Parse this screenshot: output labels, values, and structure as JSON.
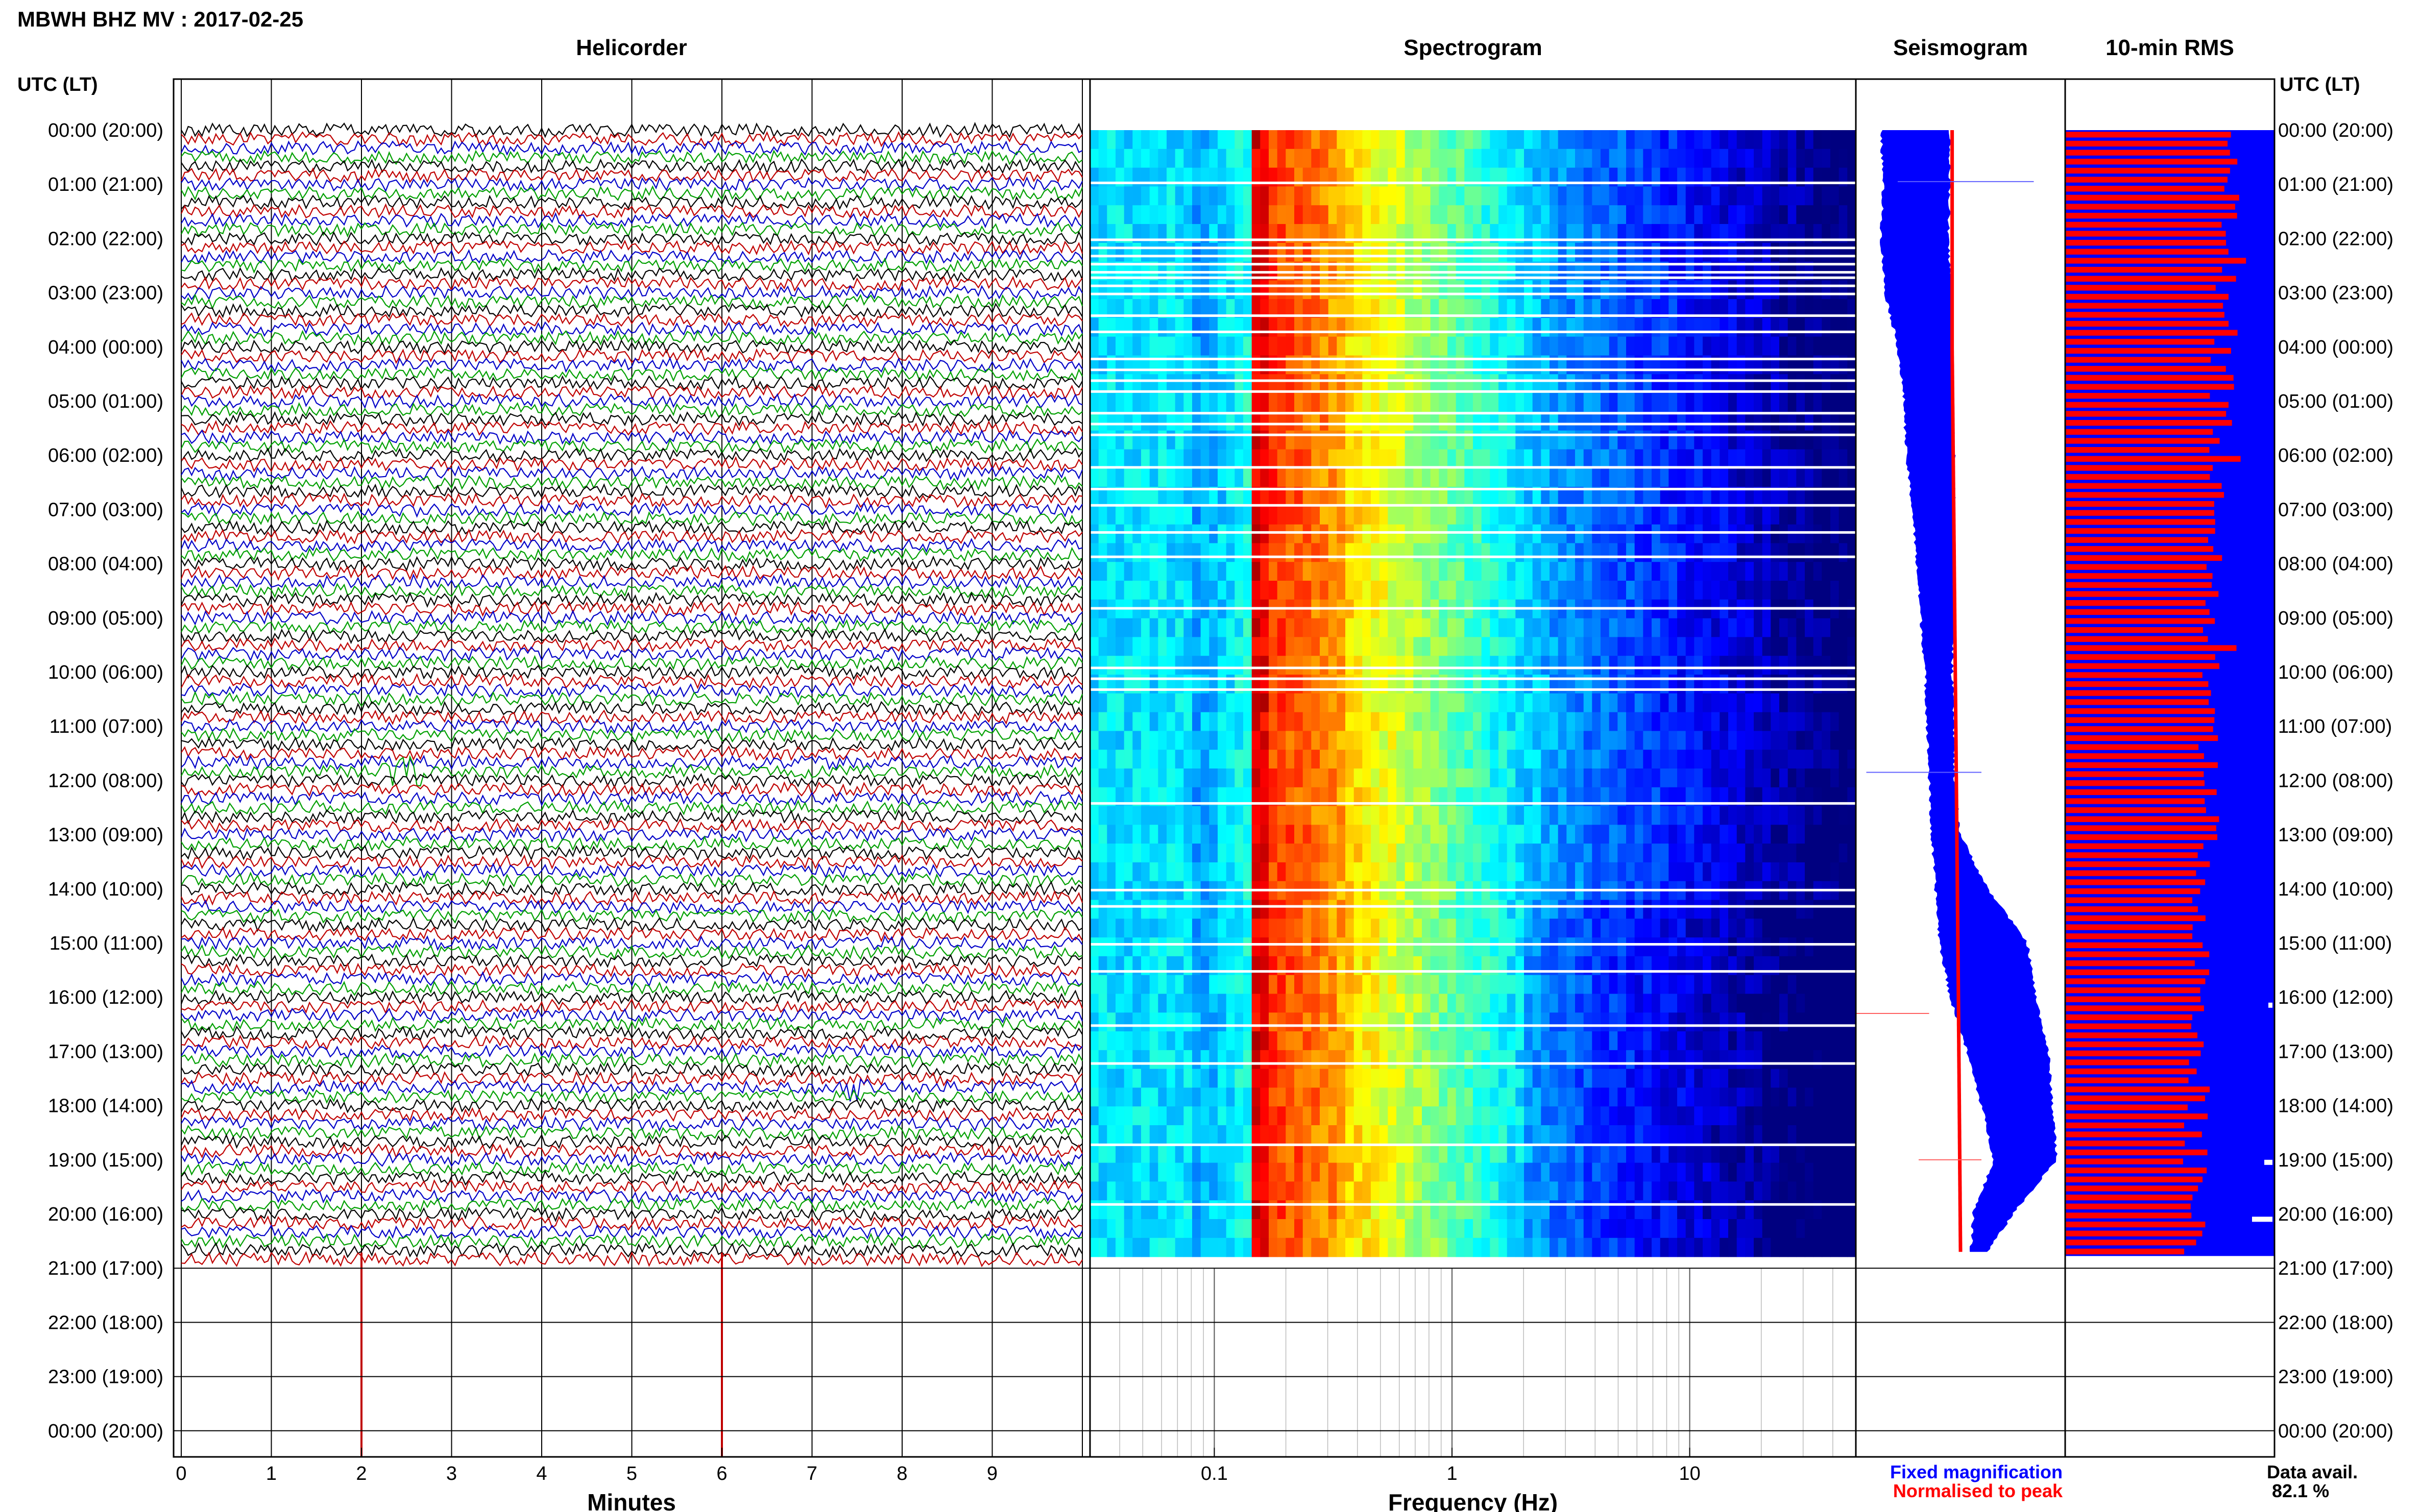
{
  "header": {
    "station_title": "MBWH BHZ MV : 2017-02-25",
    "utc_lt_label": "UTC (LT)"
  },
  "colors": {
    "trace_black": "#000000",
    "trace_red": "#c00000",
    "trace_blue": "#0000c8",
    "trace_green": "#00a000",
    "fixed_magnification": "#0000ff",
    "normalised_to_peak": "#ff0000",
    "rms_background": "#0000ff",
    "rms_bars": "#ff0000"
  },
  "legend": {
    "fixed_label": "Fixed magnification",
    "normalised_label": "Normalised to peak",
    "data_avail_label": "Data avail.",
    "data_avail_value": "82.1 %"
  },
  "time_labels": [
    "00:00 (20:00)",
    "01:00 (21:00)",
    "02:00 (22:00)",
    "03:00 (23:00)",
    "04:00 (00:00)",
    "05:00 (01:00)",
    "06:00 (02:00)",
    "07:00 (03:00)",
    "08:00 (04:00)",
    "09:00 (05:00)",
    "10:00 (06:00)",
    "11:00 (07:00)",
    "12:00 (08:00)",
    "13:00 (09:00)",
    "14:00 (10:00)",
    "15:00 (11:00)",
    "16:00 (12:00)",
    "17:00 (13:00)",
    "18:00 (14:00)",
    "19:00 (15:00)",
    "20:00 (16:00)",
    "21:00 (17:00)",
    "22:00 (18:00)",
    "23:00 (19:00)",
    "00:00 (20:00)"
  ],
  "chart_data": [
    {
      "type": "line",
      "title": "Helicorder",
      "xlabel": "Minutes",
      "x_ticks": [
        "0",
        "1",
        "2",
        "3",
        "4",
        "5",
        "6",
        "7",
        "8",
        "9"
      ],
      "xlim": [
        0,
        10
      ],
      "ylabel": "UTC (LT)",
      "y_range_hours": [
        0,
        24
      ],
      "data_end_hour": 20.9,
      "trace_colors_cycle": [
        "black",
        "red",
        "blue",
        "green"
      ],
      "events": [
        {
          "hour": 0.6,
          "minute": 1.8,
          "trace": "blue",
          "amplitude": "large"
        },
        {
          "hour": 11.8,
          "minute": 2.5,
          "trace": "green",
          "amplitude": "large"
        },
        {
          "hour": 17.6,
          "minute": 7.5,
          "trace": "blue",
          "amplitude": "medium"
        }
      ],
      "spikes": [
        {
          "minute": 2,
          "trace": "red"
        },
        {
          "minute": 6,
          "trace": "red"
        }
      ]
    },
    {
      "type": "heatmap",
      "title": "Spectrogram",
      "xlabel": "Frequency (Hz)",
      "x_scale": "log",
      "x_ticks": [
        "0.1",
        "1",
        "10"
      ],
      "xlim": [
        0.03,
        50
      ],
      "y_range_hours": [
        0,
        24
      ],
      "data_end_hour": 20.9,
      "dominant_band_hz": [
        0.15,
        0.3
      ],
      "colormap": "jet"
    },
    {
      "type": "line",
      "title": "Seismogram",
      "series": [
        {
          "name": "Fixed magnification",
          "color": "#0000ff"
        },
        {
          "name": "Normalised to peak",
          "color": "#ff0000"
        }
      ],
      "y_range_hours": [
        0,
        24
      ],
      "data_end_hour": 20.9,
      "fixed_profile": {
        "hours": [
          0,
          1,
          2,
          3,
          4,
          5,
          6,
          7,
          8,
          9,
          10,
          11,
          12,
          13,
          14,
          15,
          16,
          17,
          18,
          19,
          20,
          20.7
        ],
        "left": [
          0.12,
          0.13,
          0.12,
          0.14,
          0.2,
          0.23,
          0.24,
          0.27,
          0.29,
          0.31,
          0.33,
          0.34,
          0.35,
          0.36,
          0.38,
          0.4,
          0.45,
          0.53,
          0.6,
          0.66,
          0.56,
          0.55
        ],
        "right": [
          0.45,
          0.45,
          0.44,
          0.46,
          0.46,
          0.46,
          0.47,
          0.47,
          0.47,
          0.47,
          0.46,
          0.47,
          0.47,
          0.5,
          0.63,
          0.82,
          0.86,
          0.92,
          0.94,
          0.96,
          0.75,
          0.63
        ]
      },
      "normalised_profile": {
        "hours": [
          0,
          4,
          8,
          12,
          16,
          20.7
        ],
        "x": [
          0.46,
          0.46,
          0.47,
          0.48,
          0.49,
          0.5
        ]
      }
    },
    {
      "type": "bar",
      "title": "10-min RMS",
      "y_range_hours": [
        0,
        24
      ],
      "bin_minutes": 10,
      "bins": 125,
      "relative_rms_range": [
        0.54,
        0.85
      ],
      "data_avail_percent": 82.1
    }
  ]
}
